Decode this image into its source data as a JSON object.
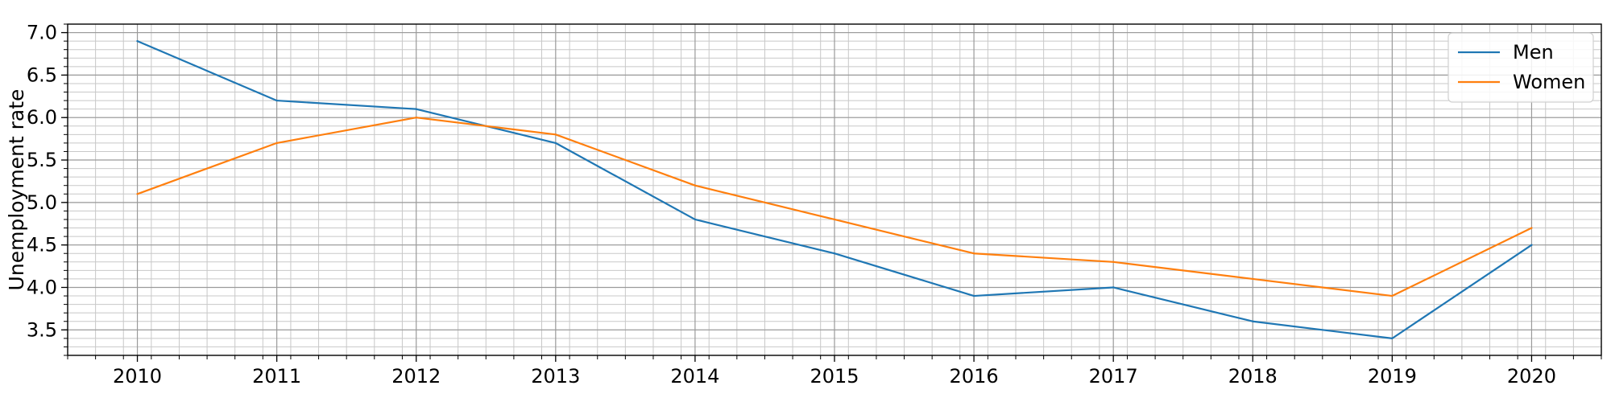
{
  "chart_data": {
    "type": "line",
    "title": "",
    "xlabel": "",
    "ylabel": "Unemployment rate",
    "x": [
      2010,
      2011,
      2012,
      2013,
      2014,
      2015,
      2016,
      2017,
      2018,
      2019,
      2020
    ],
    "x_tick_labels": [
      "2010",
      "2011",
      "2012",
      "2013",
      "2014",
      "2015",
      "2016",
      "2017",
      "2018",
      "2019",
      "2020"
    ],
    "y_tick_labels": [
      "3.5",
      "4.0",
      "4.5",
      "5.0",
      "5.5",
      "6.0",
      "6.5",
      "7.0"
    ],
    "xlim": [
      2009.5,
      2020.5
    ],
    "ylim": [
      3.2,
      7.1
    ],
    "grid": true,
    "legend_position": "top-right",
    "series": [
      {
        "name": "Men",
        "color": "#1f77b4",
        "values": [
          6.9,
          6.2,
          6.1,
          5.7,
          4.8,
          4.4,
          3.9,
          4.0,
          3.6,
          3.4,
          4.5
        ]
      },
      {
        "name": "Women",
        "color": "#ff7f0e",
        "values": [
          5.1,
          5.7,
          6.0,
          5.8,
          5.2,
          4.8,
          4.4,
          4.3,
          4.1,
          3.9,
          4.7
        ]
      }
    ]
  }
}
